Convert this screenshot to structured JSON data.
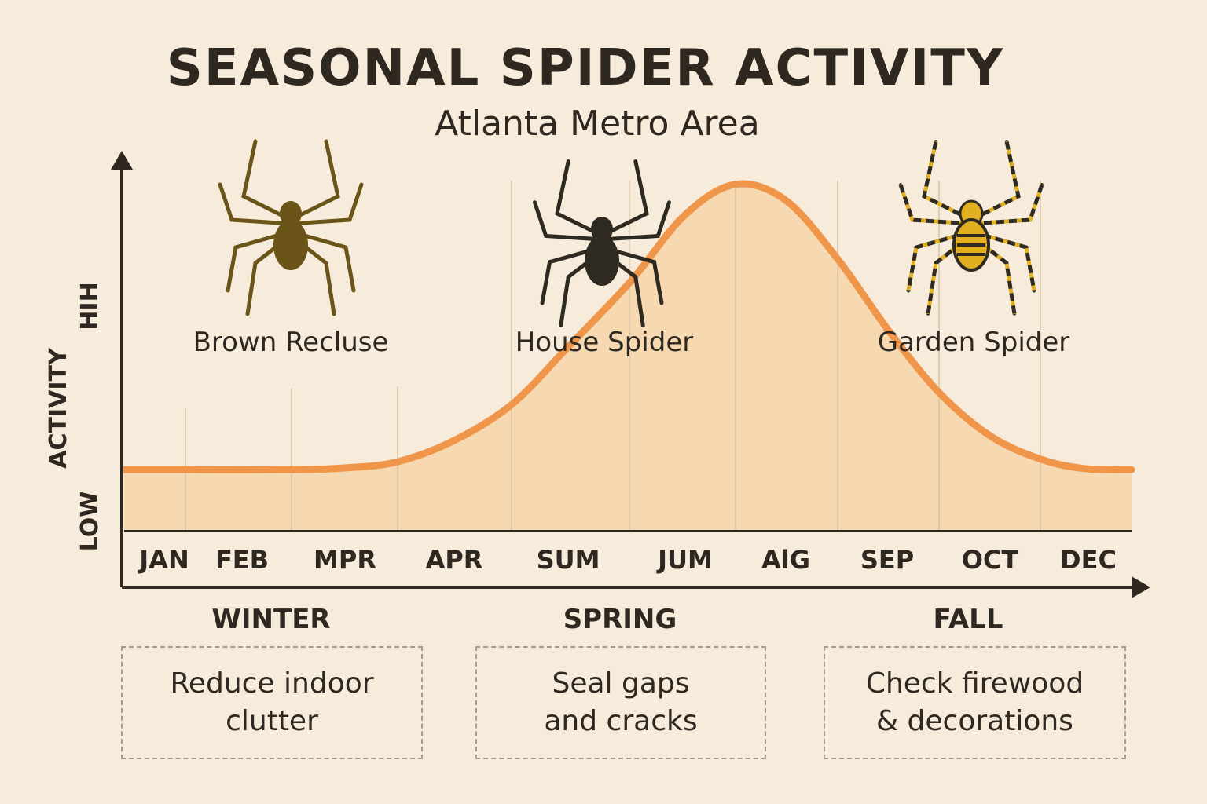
{
  "title": "SEASONAL SPIDER ACTIVITY",
  "subtitle": "Atlanta Metro Area",
  "chart_data": {
    "type": "area",
    "ylabel": "ACTIVITY",
    "y_tick_labels": {
      "low": "LOW",
      "high": "HIH"
    },
    "x_tick_labels": [
      "JAN",
      "FEB",
      "MPR",
      "APR",
      "SUM",
      "JUM",
      "AlG",
      "SEP",
      "OCT",
      "DEC"
    ],
    "xlim": [
      0,
      12
    ],
    "ylim": [
      0,
      100
    ],
    "grid": "vertical",
    "curve": {
      "x": [
        0,
        0.73,
        2.0,
        2.64,
        3.26,
        3.95,
        4.62,
        5.26,
        6.02,
        6.67,
        7.28,
        7.88,
        8.5,
        9.1,
        9.71,
        10.32,
        10.92,
        11.44,
        12
      ],
      "y": [
        16.7,
        16.7,
        16.7,
        17.2,
        18.9,
        25,
        34.8,
        50,
        68.5,
        87,
        95.7,
        91.3,
        75,
        55.4,
        38,
        26,
        19.6,
        17,
        16.7
      ]
    },
    "line_color": "#f0964a",
    "fill_color": "#f6d9b0",
    "seasons": [
      "WINTER",
      "SPRING",
      "FALL"
    ],
    "spiders": [
      {
        "name": "Brown Recluse",
        "color": "#6b5418"
      },
      {
        "name": "House Spider",
        "color": "#2e2a22"
      },
      {
        "name": "Garden Spider",
        "color": "#e0b020"
      }
    ]
  },
  "tips": [
    {
      "season": "WINTER",
      "line1": "Reduce indoor",
      "line2": "clutter"
    },
    {
      "season": "SPRING",
      "line1": "Seal gaps",
      "line2": "and cracks"
    },
    {
      "season": "FALL",
      "line1": "Check firewood",
      "line2": "& decorations"
    }
  ]
}
